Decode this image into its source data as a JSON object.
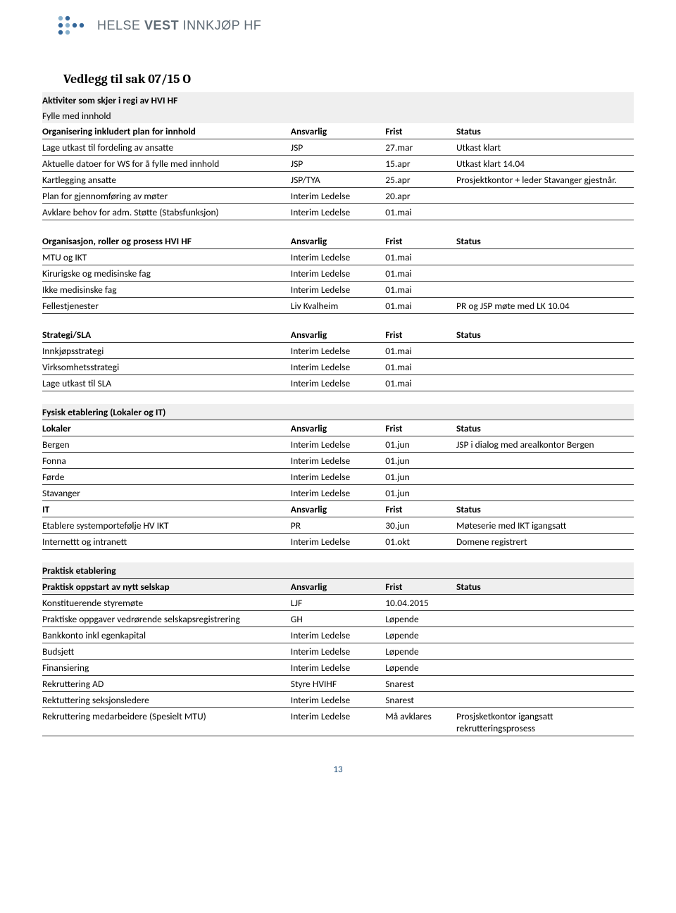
{
  "logo": {
    "text_light1": "HELSE",
    "text_bold": "VEST",
    "text_light2": "INNKJØP HF",
    "dot_color_dark": "#336699",
    "dot_color_light": "#88b0cc"
  },
  "title": "Vedlegg til sak 07/15 O",
  "colors": {
    "shaded_bg": "#efefef",
    "rule": "#333333",
    "pagenum": "#1f4e79"
  },
  "col_headers": {
    "resp": "Ansvarlig",
    "frist": "Frist",
    "status": "Status"
  },
  "sections": [
    {
      "pretext": [
        {
          "shaded": true,
          "bold": true,
          "text": "Aktiviter som skjer i regi av HVI HF"
        },
        {
          "shaded": true,
          "bold": false,
          "text": "Fylle med innhold"
        }
      ],
      "header": {
        "label": "Organisering inkludert plan for innhold",
        "rule_above": false,
        "rule_below": false,
        "shaded": false
      },
      "rows": [
        {
          "task": "Lage utkast til fordeling av ansatte",
          "resp": "JSP",
          "frist": "27.mar",
          "status": "Utkast klart",
          "rule_above": true,
          "rule_below": true
        },
        {
          "task": "Aktuelle datoer for WS for å fylle med innhold",
          "resp": "JSP",
          "frist": "15.apr",
          "status": "Utkast klart 14.04",
          "rule_below": true
        },
        {
          "task": "Kartlegging ansatte",
          "resp": "JSP/TYA",
          "frist": "25.apr",
          "status": "Prosjektkontor + leder Stavanger gjestnår.",
          "rule_below": true
        },
        {
          "task": "Plan for gjennomføring av møter",
          "resp": "Interim Ledelse",
          "frist": "20.apr",
          "status": "",
          "rule_below": true
        },
        {
          "task": "Avklare behov for adm. Støtte (Stabsfunksjon)",
          "resp": "Interim Ledelse",
          "frist": "01.mai",
          "status": "",
          "rule_below": true
        }
      ]
    },
    {
      "header": {
        "label": "Organisasjon, roller og prosess  HVI HF",
        "rule_above": false,
        "rule_below": false,
        "shaded": false
      },
      "rows": [
        {
          "task": "MTU og IKT",
          "resp": "Interim Ledelse",
          "frist": "01.mai",
          "status": "",
          "rule_above": true,
          "rule_below": true
        },
        {
          "task": "Kirurigske og medisinske fag",
          "resp": "Interim Ledelse",
          "frist": "01.mai",
          "status": "",
          "rule_below": true
        },
        {
          "task": "Ikke medisinske fag",
          "resp": "Interim Ledelse",
          "frist": "01.mai",
          "status": "",
          "rule_below": true
        },
        {
          "task": "Fellestjenester",
          "resp": "Liv Kvalheim",
          "frist": "01.mai",
          "status": "PR og JSP møte med LK 10.04",
          "rule_below": true
        }
      ]
    },
    {
      "header": {
        "label": "Strategi/SLA",
        "rule_above": false,
        "rule_below": false,
        "shaded": false
      },
      "rows": [
        {
          "task": "Innkjøpsstrategi",
          "resp": "Interim Ledelse",
          "frist": "01.mai",
          "status": "",
          "rule_above": true,
          "rule_below": true
        },
        {
          "task": "Virksomhetsstrategi",
          "resp": "Interim Ledelse",
          "frist": "01.mai",
          "status": "",
          "rule_below": true
        },
        {
          "task": "Lage utkast til SLA",
          "resp": "Interim Ledelse",
          "frist": "01.mai",
          "status": "",
          "rule_below": true
        }
      ]
    },
    {
      "pretext": [
        {
          "shaded": true,
          "bold": true,
          "text": "Fysisk etablering (Lokaler og IT)"
        }
      ],
      "header": {
        "label": "Lokaler",
        "rule_above": true,
        "rule_below": true,
        "shaded": false
      },
      "rows": [
        {
          "task": "Bergen",
          "resp": "Interim Ledelse",
          "frist": "01.jun",
          "status": "JSP  i dialog med arealkontor Bergen",
          "rule_below": true
        },
        {
          "task": "Fonna",
          "resp": "Interim Ledelse",
          "frist": "01.jun",
          "status": "",
          "rule_below": true
        },
        {
          "task": "Førde",
          "resp": "Interim Ledelse",
          "frist": "01.jun",
          "status": "",
          "rule_below": true
        },
        {
          "task": "Stavanger",
          "resp": "Interim Ledelse",
          "frist": "01.jun",
          "status": "",
          "rule_below": true
        }
      ],
      "subheader": {
        "label": "IT",
        "rule_below": true
      },
      "subrows": [
        {
          "task": "Etablere systemportefølje HV IKT",
          "resp": "PR",
          "frist": "30.jun",
          "status": "Møteserie med IKT igangsatt",
          "rule_below": true
        },
        {
          "task": "Internettt og intranett",
          "resp": "Interim Ledelse",
          "frist": "01.okt",
          "status": "Domene registrert",
          "rule_below": true
        }
      ]
    },
    {
      "pretext": [
        {
          "shaded": true,
          "bold": true,
          "text": "Praktisk etablering"
        }
      ],
      "header": {
        "label": "Praktisk oppstart av nytt selskap",
        "rule_above": true,
        "rule_below": true,
        "shaded": true
      },
      "rows": [
        {
          "task": "Konstituerende styremøte",
          "resp": "LJF",
          "frist": "10.04.2015",
          "status": "",
          "rule_below": true
        },
        {
          "task": "Praktiske oppgaver vedrørende selskapsregistrering",
          "resp": "GH",
          "frist": "Løpende",
          "status": "",
          "rule_below": true
        },
        {
          "task": "Bankkonto inkl egenkapital",
          "resp": "Interim Ledelse",
          "frist": "Løpende",
          "status": "",
          "rule_below": true
        },
        {
          "task": "Budsjett",
          "resp": "Interim Ledelse",
          "frist": "Løpende",
          "status": "",
          "rule_below": true
        },
        {
          "task": "Finansiering",
          "resp": "Interim Ledelse",
          "frist": "Løpende",
          "status": "",
          "rule_below": true
        },
        {
          "task": "Rekruttering AD",
          "resp": "Styre HVIHF",
          "frist": "Snarest",
          "status": "",
          "rule_below": true
        },
        {
          "task": "Rektuttering seksjonsledere",
          "resp": "Interim Ledelse",
          "frist": "Snarest",
          "status": "",
          "rule_below": true
        },
        {
          "task": "Rekruttering medarbeidere (Spesielt MTU)",
          "resp": "Interim Ledelse",
          "frist": "Må avklares",
          "status": "Prosjsketkontor igangsatt rekrutteringsprosess",
          "rule_below": true
        }
      ]
    }
  ],
  "page_number": "13"
}
